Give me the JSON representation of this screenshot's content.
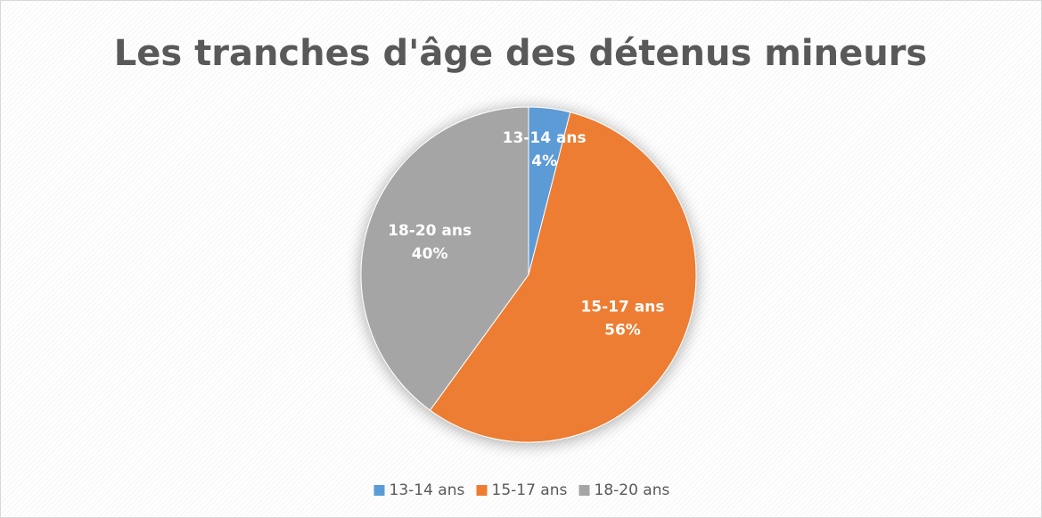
{
  "chart_data": {
    "type": "pie",
    "title": "Les tranches d'âge des détenus mineurs",
    "categories": [
      "13-14 ans",
      "15-17 ans",
      "18-20 ans"
    ],
    "values": [
      4,
      56,
      40
    ],
    "value_labels": [
      "4%",
      "56%",
      "40%"
    ],
    "colors": [
      "#5b9bd5",
      "#ed7d31",
      "#a5a5a5"
    ],
    "legend": "bottom"
  }
}
